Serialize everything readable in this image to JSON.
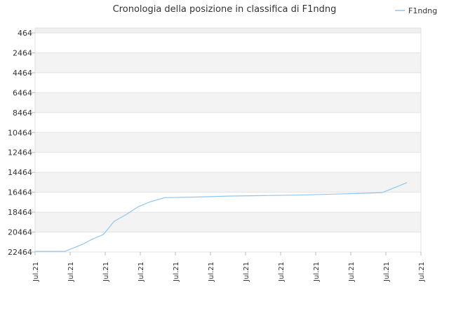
{
  "chart_data": {
    "type": "line",
    "title": "Cronologia della posizione in classifica di F1ndng",
    "xlabel": "",
    "ylabel": "",
    "y_inverted": true,
    "ylim": [
      464,
      22464
    ],
    "y_ticks": [
      "464",
      "2464",
      "4464",
      "6464",
      "8464",
      "10464",
      "12464",
      "14464",
      "16464",
      "18464",
      "20464",
      "22464"
    ],
    "x_ticks": [
      "Jul.21",
      "Jul.21",
      "Jul.21",
      "Jul.21",
      "Jul.21",
      "Jul.21",
      "Jul.21",
      "Jul.21",
      "Jul.21",
      "Jul.21",
      "Jul.21",
      "Jul.21"
    ],
    "grid": true,
    "legend_position": "top-right",
    "series": [
      {
        "name": "F1ndng",
        "color": "#90c6ee",
        "x": [
          0,
          0.45,
          0.85,
          1.35,
          1.62,
          1.95,
          2.25,
          2.6,
          2.95,
          3.3,
          3.7,
          4.5,
          5.5,
          6.5,
          7.5,
          8.5,
          9.5,
          9.9,
          10.6
        ],
        "values": [
          22400,
          22400,
          22400,
          21700,
          21200,
          20700,
          19400,
          18700,
          17900,
          17400,
          17000,
          16950,
          16850,
          16800,
          16750,
          16650,
          16550,
          16500,
          15500
        ]
      }
    ]
  }
}
